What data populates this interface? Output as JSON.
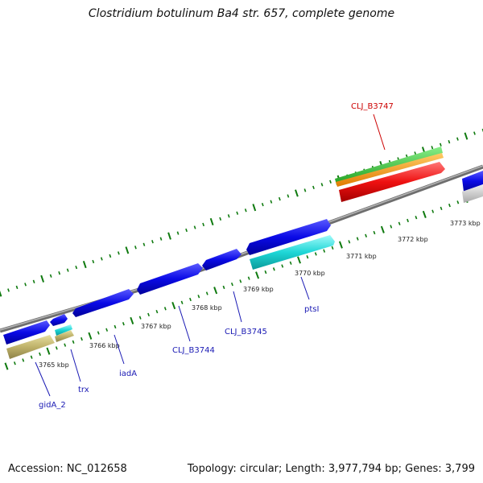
{
  "title": "Clostridium botulinum Ba4 str. 657, complete genome",
  "footer": {
    "accession": "Accession: NC_012658",
    "summary": "Topology: circular; Length: 3,977,794 bp; Genes: 3,799"
  },
  "scale_labels": [
    "3765 kbp",
    "3766 kbp",
    "3767 kbp",
    "3768 kbp",
    "3769 kbp",
    "3770 kbp",
    "3771 kbp",
    "3772 kbp",
    "3773 kbp"
  ],
  "gene_labels": [
    "gidA_2",
    "trx",
    "iadA",
    "CLJ_B3744",
    "CLJ_B3745",
    "ptsI",
    "CLJ_B3747"
  ],
  "colors": {
    "backbone": "#8c8c8c",
    "cds": "#0a0ae6",
    "gene": "#c8be78",
    "misc": "#1ee6e6",
    "highlight_label": "#cc0000",
    "tick": "#0f7a0f",
    "red": "#ee1111",
    "orange": "#ff9900",
    "green": "#33cc33",
    "grey": "#cccccc"
  }
}
